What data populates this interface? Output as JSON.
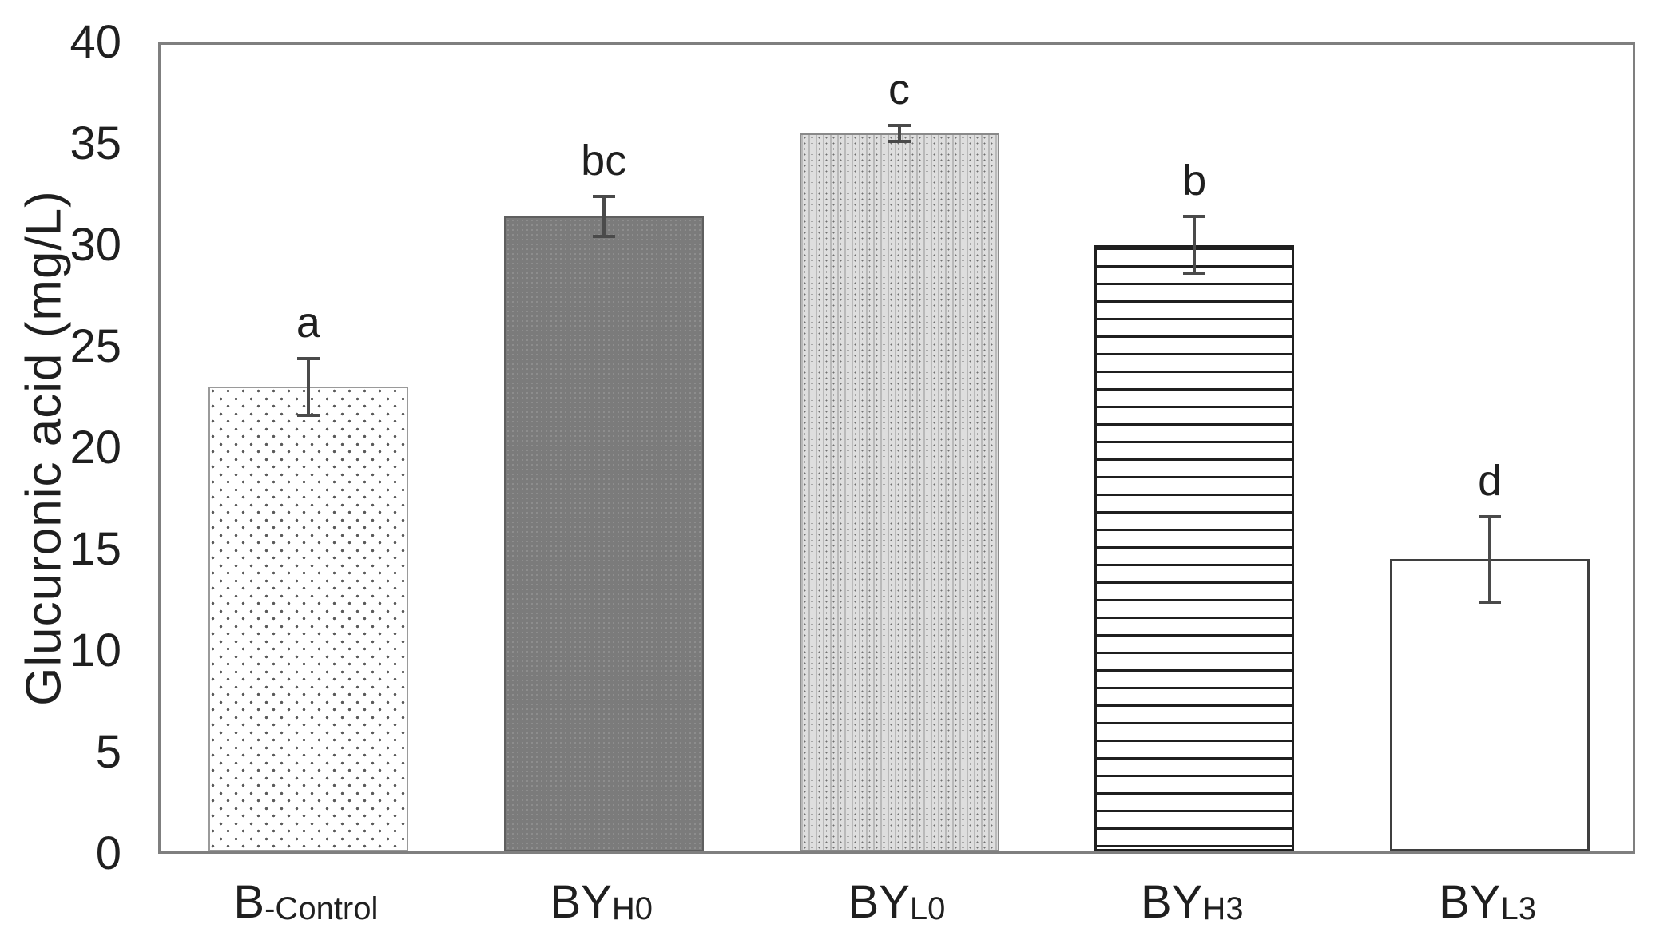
{
  "figure": {
    "background": "#ffffff",
    "text_color": "#1f1f1f",
    "frame_color": "#7f7f7f",
    "error_bar_color": "#4a4a4a"
  },
  "chart_data": {
    "type": "bar",
    "title": "",
    "xlabel": "",
    "ylabel": "Glucuronic acid (mg/L)",
    "ylim": [
      0,
      40
    ],
    "yticks": [
      0,
      5,
      10,
      15,
      20,
      25,
      30,
      35,
      40
    ],
    "grid": false,
    "legend_position": "none",
    "categories": [
      "B-Control",
      "BYH0",
      "BYL0",
      "BYH3",
      "BYL3"
    ],
    "bars": [
      {
        "label_base": "B",
        "label_sub": "-Control",
        "value": 22.9,
        "error": 1.4,
        "sig_letter": "a",
        "pattern": "dots",
        "fill": "#ffffff"
      },
      {
        "label_base": "BY",
        "label_sub": "H0",
        "value": 31.3,
        "error": 1.0,
        "sig_letter": "bc",
        "pattern": "dark-solid",
        "fill": "#7b7b7b"
      },
      {
        "label_base": "BY",
        "label_sub": "L0",
        "value": 35.4,
        "error": 0.4,
        "sig_letter": "c",
        "pattern": "fine-dot-grid",
        "fill": "#dedede"
      },
      {
        "label_base": "BY",
        "label_sub": "H3",
        "value": 29.9,
        "error": 1.4,
        "sig_letter": "b",
        "pattern": "horizontal-lines",
        "fill": "#ffffff"
      },
      {
        "label_base": "BY",
        "label_sub": "L3",
        "value": 14.4,
        "error": 2.1,
        "sig_letter": "d",
        "pattern": "plain",
        "fill": "#ffffff"
      }
    ]
  }
}
